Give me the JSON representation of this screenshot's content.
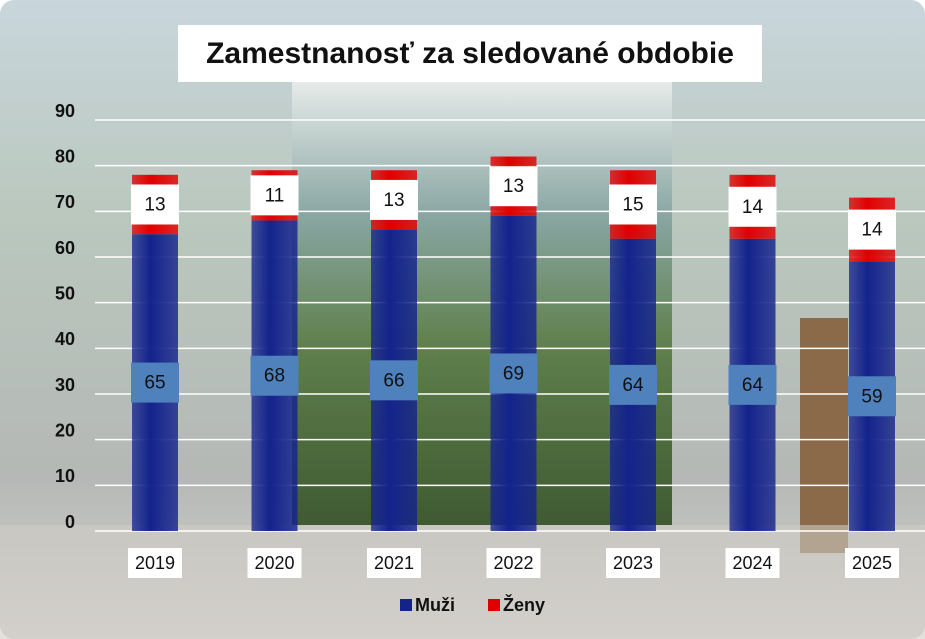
{
  "chart_data": {
    "type": "stacked_bar",
    "title": "Zamestnanosť za sledované obdobie",
    "categories": [
      "2019",
      "2020",
      "2021",
      "2022",
      "2023",
      "2024",
      "2025"
    ],
    "series": [
      {
        "name": "Muži",
        "color": "#14238c",
        "values": [
          65,
          68,
          66,
          69,
          64,
          64,
          59
        ]
      },
      {
        "name": "Ženy",
        "color": "#e00000",
        "values": [
          13,
          11,
          13,
          13,
          15,
          14,
          14
        ]
      }
    ],
    "ylim": [
      0,
      90
    ],
    "yticks": [
      0,
      10,
      20,
      30,
      40,
      50,
      60,
      70,
      80,
      90
    ],
    "grid": true,
    "legend": "bottom"
  }
}
